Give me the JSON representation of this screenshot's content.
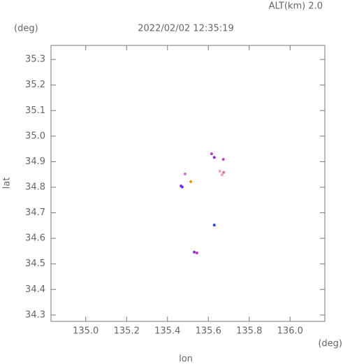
{
  "chart_data": {
    "type": "scatter",
    "title": "2022/02/02 12:35:19",
    "annotation": "ALT(km) 2.0",
    "y_unit": "(deg)",
    "x_unit": "(deg)",
    "xlabel": "lon",
    "ylabel": "lat",
    "xlim": [
      134.83,
      136.17
    ],
    "ylim": [
      34.275,
      35.355
    ],
    "xticks": [
      {
        "value": 135,
        "label": "135.0"
      },
      135.2,
      135.4,
      135.6,
      135.8,
      {
        "value": 136,
        "label": "136.0"
      }
    ],
    "yticks": [
      34.3,
      34.4,
      34.5,
      34.6,
      34.7,
      34.8,
      34.9,
      {
        "value": 35,
        "label": "35.0"
      },
      35.1,
      35.2,
      35.3
    ],
    "x": [
      135.466,
      135.472,
      135.514,
      135.486,
      135.616,
      135.629,
      135.673,
      135.656,
      135.667,
      135.675,
      135.629,
      135.531,
      135.544
    ],
    "values": [
      34.805,
      34.801,
      34.822,
      34.852,
      34.931,
      34.917,
      34.909,
      34.863,
      34.849,
      34.858,
      34.652,
      34.546,
      34.543
    ],
    "colors": [
      "#8a2be2",
      "#4b3cff",
      "#e0a000",
      "#d070e0",
      "#c040c0",
      "#8a2be2",
      "#c040c0",
      "#f4a0b0",
      "#f4a0b0",
      "#e070a0",
      "#3040ff",
      "#8a2be2",
      "#c040c0"
    ]
  }
}
